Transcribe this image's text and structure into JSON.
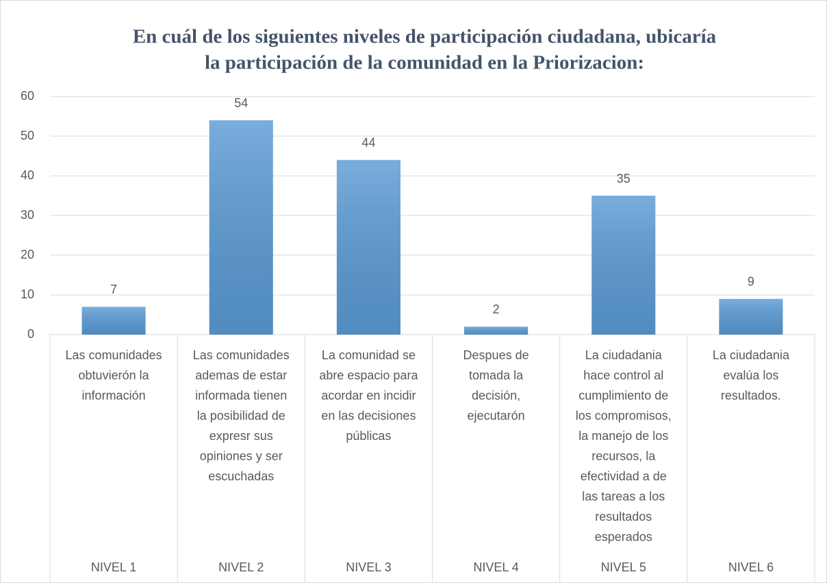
{
  "chart_data": {
    "type": "bar",
    "title": [
      "En cuál de los siguientes niveles de participación ciudadana, ubicaría",
      "la participación de la comunidad en la Priorizacion:"
    ],
    "categories": [
      "NIVEL 1",
      "NIVEL 2",
      "NIVEL 3",
      "NIVEL 4",
      "NIVEL 5",
      "NIVEL 6"
    ],
    "category_descriptions": [
      [
        "Las comunidades",
        "obtuvierón la",
        "información"
      ],
      [
        "Las comunidades",
        "ademas de estar",
        "informada  tienen",
        "la posibilidad de",
        "expresr sus",
        "opiniones y ser",
        "escuchadas"
      ],
      [
        "La comunidad se",
        "abre espacio  para",
        "acordar en incidir",
        "en las decisiones",
        "públicas"
      ],
      [
        "Despues de",
        "tomada la",
        "decisión,",
        "ejecutarón"
      ],
      [
        "La ciudadania",
        "hace control al",
        "cumplimiento de",
        "los compromisos,",
        "la manejo de los",
        "recursos,  la",
        "efectividad a de",
        "las tareas a los",
        "resultados",
        "esperados"
      ],
      [
        "La ciudadania",
        "evalúa los",
        "resultados."
      ]
    ],
    "values": [
      7,
      54,
      44,
      2,
      35,
      9
    ],
    "color": "#5b9bd5",
    "ylim": [
      0,
      60
    ],
    "yticks": [
      0,
      10,
      20,
      30,
      40,
      50,
      60
    ],
    "grid": true
  }
}
